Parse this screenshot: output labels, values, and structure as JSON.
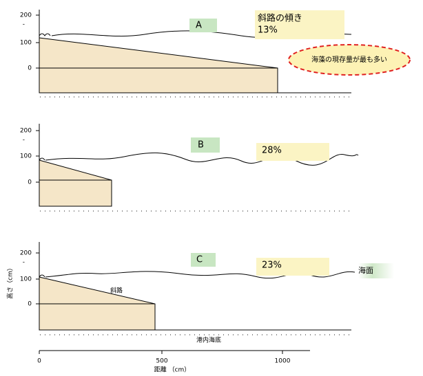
{
  "panels": [
    {
      "label": "A",
      "slope_title": "斜路の傾き",
      "slope": "13%",
      "yticks": [
        "200",
        "-",
        "100",
        "0"
      ]
    },
    {
      "label": "B",
      "slope": "28%",
      "yticks": [
        "200",
        "-",
        "100",
        "0"
      ]
    },
    {
      "label": "C",
      "slope": "23%",
      "yticks": [
        "200",
        "-",
        "100",
        "0"
      ],
      "slope_name": "斜路",
      "sea_surface": "海面",
      "seabed": "港内海底"
    }
  ],
  "annotation": "海藻の現存量が最も多い",
  "y_axis_label": "高さ（cm）",
  "x_axis": {
    "label": "距離 （cm）",
    "ticks": [
      "0",
      "500",
      "1000"
    ]
  }
}
